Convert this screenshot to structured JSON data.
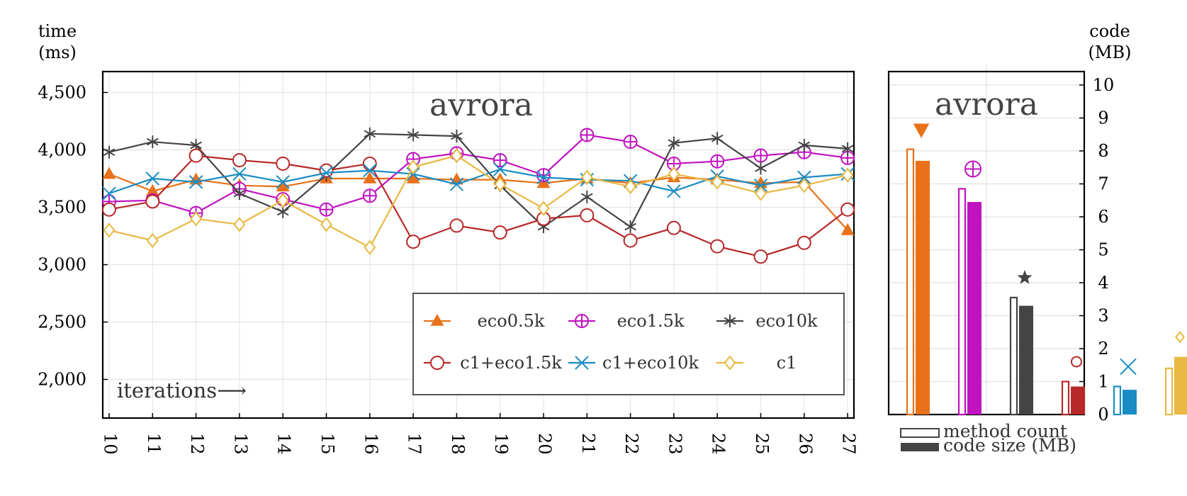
{
  "chart_data": [
    {
      "type": "line",
      "title": "avrora",
      "ylabel_line1": "time",
      "ylabel_line2": "(ms)",
      "x_annotation": "iterations⟶",
      "x": [
        10,
        11,
        12,
        13,
        14,
        15,
        16,
        17,
        18,
        19,
        20,
        21,
        22,
        23,
        24,
        25,
        26,
        27
      ],
      "y_ticks": [
        2000,
        2500,
        3000,
        3500,
        4000,
        4500
      ],
      "y_tick_labels": [
        "2,000",
        "2,500",
        "3,000",
        "3,500",
        "4,000",
        "4,500"
      ],
      "ylim": [
        1850,
        4680
      ],
      "grid": true,
      "legend_position": "bottom-right",
      "series": [
        {
          "name": "eco0.5k",
          "color": "#E8711A",
          "marker": "triangle-up-filled",
          "values": [
            3790,
            3640,
            3740,
            3690,
            3680,
            3750,
            3750,
            3750,
            3740,
            3740,
            3710,
            3750,
            3710,
            3760,
            3740,
            3710,
            3720,
            3300
          ]
        },
        {
          "name": "eco1.5k",
          "color": "#C012C0",
          "marker": "circle-plus",
          "values": [
            3550,
            3560,
            3450,
            3660,
            3570,
            3480,
            3600,
            3920,
            3970,
            3910,
            3780,
            4130,
            4070,
            3880,
            3900,
            3950,
            3980,
            3930
          ]
        },
        {
          "name": "eco10k",
          "color": "#444444",
          "marker": "star",
          "values": [
            3980,
            4070,
            4040,
            3620,
            3460,
            3780,
            4140,
            4130,
            4120,
            3690,
            3330,
            3590,
            3330,
            4060,
            4100,
            3840,
            4040,
            4010
          ]
        },
        {
          "name": "c1+eco1.5k",
          "color": "#B82828",
          "marker": "circle",
          "values": [
            3480,
            3550,
            3950,
            3910,
            3880,
            3820,
            3880,
            3200,
            3340,
            3280,
            3400,
            3430,
            3210,
            3320,
            3160,
            3070,
            3190,
            3480
          ]
        },
        {
          "name": "c1+eco10k",
          "color": "#1A8CC4",
          "marker": "cross",
          "values": [
            3620,
            3750,
            3720,
            3790,
            3720,
            3800,
            3820,
            3790,
            3700,
            3830,
            3760,
            3740,
            3730,
            3640,
            3770,
            3690,
            3760,
            3790
          ]
        },
        {
          "name": "c1",
          "color": "#E8B840",
          "marker": "diamond",
          "values": [
            3300,
            3210,
            3400,
            3350,
            3560,
            3350,
            3150,
            3850,
            3950,
            3700,
            3490,
            3760,
            3680,
            3790,
            3720,
            3620,
            3690,
            3780
          ]
        }
      ]
    },
    {
      "type": "bar",
      "title": "avrora",
      "ylabel_line1": "code",
      "ylabel_line2": "(MB)",
      "ylim": [
        0,
        10.5
      ],
      "y_ticks": [
        0,
        1,
        2,
        3,
        4,
        5,
        6,
        7,
        8,
        9,
        10
      ],
      "grid": true,
      "legend": [
        "method count",
        "code size (MB)"
      ],
      "categories": [
        "eco0.5k",
        "eco1.5k",
        "eco10k",
        "c1+eco1.5k",
        "c1+eco10k",
        "c1"
      ],
      "series": [
        {
          "name": "method count",
          "values": [
            8.05,
            6.85,
            3.55,
            1.0,
            0.85,
            1.4
          ]
        },
        {
          "name": "code size (MB)",
          "values": [
            7.7,
            6.45,
            3.3,
            0.85,
            0.75,
            1.75
          ]
        }
      ]
    }
  ]
}
